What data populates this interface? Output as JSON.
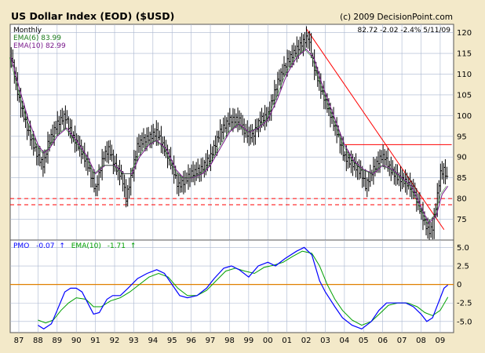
{
  "colors": {
    "background": "#f3e9c9",
    "panel": "#ffffff",
    "grid": "#a9b6cf",
    "bar": "#000000",
    "ema_short": "#1a7a1a",
    "ema_long": "#7a1a8c",
    "trendline": "#ff0000",
    "zero_line": "#e08000",
    "pmo": "#0000ff",
    "pmo_signal": "#00a000"
  },
  "header": {
    "title": "US Dollar Index (EOD) ($USD)",
    "copyright": "(c) 2009 DecisionPoint.com",
    "quote": "82.72  -2.02  -2.4%  5/11/09"
  },
  "legend": {
    "period": "Monthly",
    "ema_short": "EMA(6) 83.99",
    "ema_long": "EMA(10) 82.99"
  },
  "pmo_legend": {
    "pmo_label": "PMO",
    "pmo_value": "-0.07",
    "pmo_arrow": "↑",
    "signal_label": "EMA(10)",
    "signal_value": "-1.71",
    "signal_arrow": "↑"
  },
  "chart_data": {
    "type": "line",
    "title": "US Dollar Index (EOD) ($USD)",
    "period": "Monthly",
    "x_ticks": [
      "87",
      "88",
      "89",
      "90",
      "91",
      "92",
      "93",
      "94",
      "95",
      "96",
      "97",
      "98",
      "99",
      "00",
      "01",
      "02",
      "03",
      "04",
      "05",
      "06",
      "07",
      "08",
      "09"
    ],
    "price_ticks": [
      75,
      80,
      85,
      90,
      95,
      100,
      105,
      110,
      115,
      120
    ],
    "price_ylim": [
      70,
      122
    ],
    "price_keypoints": [
      [
        1986.5,
        117
      ],
      [
        1987.0,
        104
      ],
      [
        1987.5,
        96
      ],
      [
        1988.0,
        90
      ],
      [
        1988.3,
        88
      ],
      [
        1988.5,
        93
      ],
      [
        1989.0,
        98
      ],
      [
        1989.4,
        100
      ],
      [
        1989.8,
        95
      ],
      [
        1990.2,
        92
      ],
      [
        1990.6,
        88
      ],
      [
        1991.0,
        82
      ],
      [
        1991.4,
        90
      ],
      [
        1991.7,
        92
      ],
      [
        1992.0,
        88
      ],
      [
        1992.4,
        85
      ],
      [
        1992.6,
        80
      ],
      [
        1992.9,
        86
      ],
      [
        1993.2,
        93
      ],
      [
        1993.5,
        94
      ],
      [
        1993.9,
        95
      ],
      [
        1994.2,
        96
      ],
      [
        1994.6,
        92
      ],
      [
        1995.0,
        88
      ],
      [
        1995.3,
        83
      ],
      [
        1995.6,
        84
      ],
      [
        1996.0,
        86
      ],
      [
        1996.5,
        87
      ],
      [
        1997.0,
        90
      ],
      [
        1997.5,
        96
      ],
      [
        1998.0,
        99
      ],
      [
        1998.5,
        99
      ],
      [
        1998.8,
        96
      ],
      [
        1999.2,
        95
      ],
      [
        1999.6,
        99
      ],
      [
        2000.0,
        100
      ],
      [
        2000.5,
        108
      ],
      [
        2001.0,
        113
      ],
      [
        2001.5,
        116
      ],
      [
        2001.9,
        118
      ],
      [
        2002.1,
        119
      ],
      [
        2002.4,
        112
      ],
      [
        2002.8,
        106
      ],
      [
        2003.2,
        101
      ],
      [
        2003.6,
        96
      ],
      [
        2004.0,
        90
      ],
      [
        2004.5,
        88
      ],
      [
        2004.9,
        86
      ],
      [
        2005.1,
        83
      ],
      [
        2005.5,
        87
      ],
      [
        2005.9,
        90
      ],
      [
        2006.1,
        90
      ],
      [
        2006.4,
        87
      ],
      [
        2006.8,
        85
      ],
      [
        2007.2,
        84
      ],
      [
        2007.6,
        82
      ],
      [
        2007.9,
        78
      ],
      [
        2008.2,
        74
      ],
      [
        2008.4,
        72
      ],
      [
        2008.6,
        73
      ],
      [
        2008.8,
        79
      ],
      [
        2009.0,
        86
      ],
      [
        2009.2,
        87
      ],
      [
        2009.4,
        84
      ]
    ],
    "ema_keypoints": [
      [
        1986.6,
        114
      ],
      [
        1987.0,
        107
      ],
      [
        1987.5,
        99
      ],
      [
        1988.0,
        93
      ],
      [
        1988.3,
        91
      ],
      [
        1988.6,
        92
      ],
      [
        1989.0,
        95
      ],
      [
        1989.5,
        97
      ],
      [
        1990.0,
        94
      ],
      [
        1990.6,
        90
      ],
      [
        1991.0,
        86
      ],
      [
        1991.5,
        88
      ],
      [
        1992.0,
        88
      ],
      [
        1992.5,
        86
      ],
      [
        1992.9,
        86
      ],
      [
        1993.3,
        90
      ],
      [
        1993.8,
        93
      ],
      [
        1994.2,
        94
      ],
      [
        1994.7,
        92
      ],
      [
        1995.2,
        87
      ],
      [
        1995.6,
        85
      ],
      [
        1996.0,
        85
      ],
      [
        1996.6,
        86
      ],
      [
        1997.0,
        88
      ],
      [
        1997.5,
        92
      ],
      [
        1998.0,
        96
      ],
      [
        1998.5,
        98
      ],
      [
        1999.0,
        96
      ],
      [
        1999.5,
        97
      ],
      [
        2000.0,
        99
      ],
      [
        2000.5,
        104
      ],
      [
        2001.0,
        110
      ],
      [
        2001.5,
        114
      ],
      [
        2002.0,
        116
      ],
      [
        2002.4,
        114
      ],
      [
        2002.8,
        108
      ],
      [
        2003.2,
        103
      ],
      [
        2003.6,
        98
      ],
      [
        2004.0,
        93
      ],
      [
        2004.5,
        89
      ],
      [
        2005.0,
        87
      ],
      [
        2005.5,
        86
      ],
      [
        2006.0,
        88
      ],
      [
        2006.5,
        87
      ],
      [
        2007.0,
        85
      ],
      [
        2007.5,
        83
      ],
      [
        2008.0,
        78
      ],
      [
        2008.4,
        74
      ],
      [
        2008.8,
        76
      ],
      [
        2009.1,
        81
      ],
      [
        2009.4,
        83
      ]
    ],
    "trendline_down": [
      [
        2002.0,
        121
      ],
      [
        2009.2,
        72.5
      ]
    ],
    "resistance_line": [
      [
        2004.0,
        93
      ],
      [
        2009.6,
        93
      ]
    ],
    "support_lines": [
      80,
      78.5
    ],
    "pmo_ticks": [
      -5.0,
      -2.5,
      0,
      2.5,
      5.0
    ],
    "pmo_ylim": [
      -6.5,
      6
    ],
    "pmo_keypoints": [
      [
        1988.0,
        -5.5
      ],
      [
        1988.3,
        -6.0
      ],
      [
        1988.7,
        -5.3
      ],
      [
        1989.0,
        -3.5
      ],
      [
        1989.4,
        -1.0
      ],
      [
        1989.7,
        -0.5
      ],
      [
        1990.0,
        -0.5
      ],
      [
        1990.3,
        -1.0
      ],
      [
        1990.6,
        -2.5
      ],
      [
        1990.9,
        -4.0
      ],
      [
        1991.2,
        -3.8
      ],
      [
        1991.6,
        -2.0
      ],
      [
        1991.9,
        -1.5
      ],
      [
        1992.3,
        -1.5
      ],
      [
        1992.7,
        -0.5
      ],
      [
        1993.2,
        0.8
      ],
      [
        1993.7,
        1.5
      ],
      [
        1994.2,
        2.0
      ],
      [
        1994.6,
        1.5
      ],
      [
        1995.0,
        0
      ],
      [
        1995.4,
        -1.5
      ],
      [
        1995.8,
        -1.8
      ],
      [
        1996.3,
        -1.5
      ],
      [
        1996.8,
        -0.5
      ],
      [
        1997.2,
        0.8
      ],
      [
        1997.7,
        2.2
      ],
      [
        1998.1,
        2.5
      ],
      [
        1998.5,
        2.0
      ],
      [
        1999.0,
        1.0
      ],
      [
        1999.5,
        2.5
      ],
      [
        2000.0,
        3.0
      ],
      [
        2000.4,
        2.5
      ],
      [
        2000.9,
        3.5
      ],
      [
        2001.5,
        4.5
      ],
      [
        2001.9,
        5.0
      ],
      [
        2002.3,
        4.0
      ],
      [
        2002.7,
        0.5
      ],
      [
        2003.0,
        -1.0
      ],
      [
        2003.5,
        -3.0
      ],
      [
        2003.9,
        -4.5
      ],
      [
        2004.4,
        -5.5
      ],
      [
        2004.9,
        -6.0
      ],
      [
        2005.4,
        -5.0
      ],
      [
        2005.8,
        -3.5
      ],
      [
        2006.2,
        -2.5
      ],
      [
        2006.7,
        -2.5
      ],
      [
        2007.2,
        -2.5
      ],
      [
        2007.6,
        -3.0
      ],
      [
        2008.0,
        -4.0
      ],
      [
        2008.3,
        -5.0
      ],
      [
        2008.6,
        -4.5
      ],
      [
        2008.9,
        -2.5
      ],
      [
        2009.2,
        -0.5
      ],
      [
        2009.4,
        -0.07
      ]
    ],
    "pmo_signal_keypoints": [
      [
        1988.0,
        -4.8
      ],
      [
        1988.4,
        -5.2
      ],
      [
        1988.8,
        -4.8
      ],
      [
        1989.2,
        -3.5
      ],
      [
        1989.6,
        -2.5
      ],
      [
        1990.0,
        -1.8
      ],
      [
        1990.5,
        -2.0
      ],
      [
        1990.9,
        -3.0
      ],
      [
        1991.3,
        -3.0
      ],
      [
        1991.8,
        -2.2
      ],
      [
        1992.3,
        -1.8
      ],
      [
        1992.8,
        -1.0
      ],
      [
        1993.3,
        0
      ],
      [
        1993.8,
        1.0
      ],
      [
        1994.3,
        1.5
      ],
      [
        1994.8,
        1.0
      ],
      [
        1995.3,
        -0.5
      ],
      [
        1995.8,
        -1.5
      ],
      [
        1996.3,
        -1.5
      ],
      [
        1996.8,
        -0.8
      ],
      [
        1997.3,
        0.5
      ],
      [
        1997.8,
        1.8
      ],
      [
        1998.3,
        2.2
      ],
      [
        1998.8,
        1.8
      ],
      [
        1999.3,
        1.5
      ],
      [
        1999.8,
        2.3
      ],
      [
        2000.3,
        2.6
      ],
      [
        2000.8,
        3.0
      ],
      [
        2001.3,
        3.8
      ],
      [
        2001.8,
        4.5
      ],
      [
        2002.3,
        4.2
      ],
      [
        2002.7,
        2.5
      ],
      [
        2003.1,
        0
      ],
      [
        2003.5,
        -2.0
      ],
      [
        2003.9,
        -3.5
      ],
      [
        2004.4,
        -4.8
      ],
      [
        2004.9,
        -5.5
      ],
      [
        2005.4,
        -5.0
      ],
      [
        2005.9,
        -3.8
      ],
      [
        2006.3,
        -2.8
      ],
      [
        2006.8,
        -2.5
      ],
      [
        2007.3,
        -2.5
      ],
      [
        2007.8,
        -3.0
      ],
      [
        2008.2,
        -3.8
      ],
      [
        2008.6,
        -4.2
      ],
      [
        2009.0,
        -3.5
      ],
      [
        2009.4,
        -1.71
      ]
    ]
  }
}
